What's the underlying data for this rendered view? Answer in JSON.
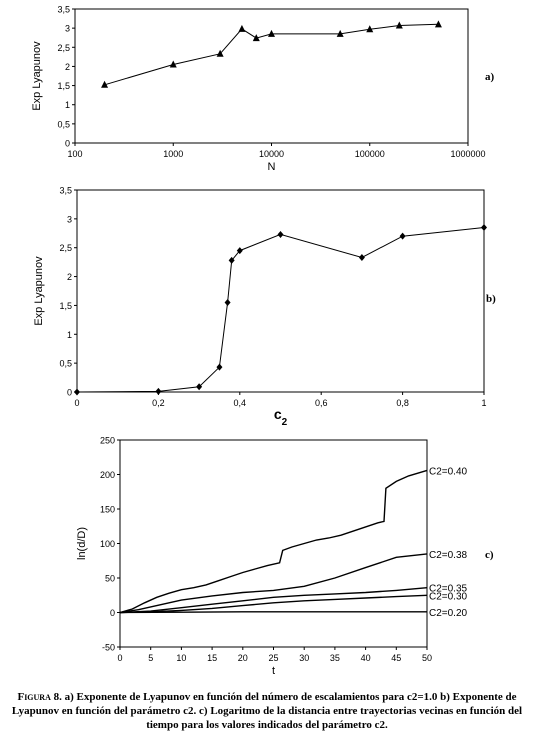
{
  "chart_data": [
    {
      "type": "line",
      "panel_label": "a)",
      "xlabel": "N",
      "ylabel": "Exp Lyapunov",
      "xscale": "log",
      "xlim": [
        100,
        1000000
      ],
      "ylim": [
        0,
        3.5
      ],
      "x_ticks": [
        "100",
        "1000",
        "10000",
        "100000",
        "1000000"
      ],
      "y_ticks": [
        "0",
        "0,5",
        "1",
        "1,5",
        "2",
        "2,5",
        "3",
        "3,5"
      ],
      "marker": "triangle",
      "grid": false,
      "x": [
        200,
        1000,
        3000,
        5000,
        7000,
        10000,
        50000,
        100000,
        200000,
        500000
      ],
      "y": [
        1.52,
        2.05,
        2.33,
        2.98,
        2.74,
        2.85,
        2.85,
        2.97,
        3.07,
        3.1
      ]
    },
    {
      "type": "line",
      "panel_label": "b)",
      "xlabel": "c",
      "xlabel_sub": "2",
      "ylabel": "Exp Lyapunov",
      "xlim": [
        0,
        1
      ],
      "ylim": [
        0,
        3.5
      ],
      "x_ticks": [
        "0",
        "0,2",
        "0,4",
        "0,6",
        "0,8",
        "1"
      ],
      "y_ticks": [
        "0",
        "0,5",
        "1",
        "1,5",
        "2",
        "2,5",
        "3",
        "3,5"
      ],
      "marker": "diamond",
      "grid": false,
      "x": [
        0,
        0.2,
        0.3,
        0.35,
        0.37,
        0.38,
        0.4,
        0.5,
        0.7,
        0.8,
        1.0
      ],
      "y": [
        0,
        0.01,
        0.09,
        0.43,
        1.55,
        2.28,
        2.45,
        2.73,
        2.33,
        2.7,
        2.85
      ]
    },
    {
      "type": "line",
      "panel_label": "c)",
      "xlabel": "t",
      "ylabel": "ln(d/D)",
      "xlim": [
        0,
        50
      ],
      "ylim": [
        -50,
        250
      ],
      "x_ticks": [
        "0",
        "5",
        "10",
        "15",
        "20",
        "25",
        "30",
        "35",
        "40",
        "45",
        "50"
      ],
      "y_ticks": [
        "-50",
        "0",
        "50",
        "100",
        "150",
        "200",
        "250"
      ],
      "grid": false,
      "series": [
        {
          "name": "C2=0.40",
          "x": [
            0,
            2,
            4,
            6,
            8,
            10,
            12,
            14,
            16,
            18,
            20,
            22,
            24,
            26,
            26.5,
            28,
            30,
            32,
            34,
            36,
            38,
            40,
            42,
            43,
            43.3,
            45,
            47,
            50
          ],
          "y": [
            0,
            5,
            14,
            22,
            28,
            33,
            36,
            40,
            46,
            52,
            58,
            63,
            68,
            72,
            90,
            95,
            100,
            105,
            108,
            112,
            118,
            124,
            130,
            132,
            180,
            190,
            198,
            206
          ]
        },
        {
          "name": "C2=0.38",
          "x": [
            0,
            3,
            6,
            10,
            15,
            20,
            25,
            30,
            35,
            40,
            45,
            50
          ],
          "y": [
            0,
            4,
            10,
            18,
            24,
            29,
            32,
            38,
            50,
            65,
            80,
            85
          ]
        },
        {
          "name": "C2=0.35",
          "x": [
            0,
            5,
            10,
            15,
            20,
            25,
            30,
            35,
            40,
            45,
            50
          ],
          "y": [
            0,
            2,
            7,
            12,
            17,
            22,
            25,
            27,
            29,
            32,
            36
          ]
        },
        {
          "name": "C2=0.30",
          "x": [
            0,
            5,
            10,
            15,
            20,
            25,
            30,
            35,
            40,
            45,
            50
          ],
          "y": [
            0,
            1,
            3,
            6,
            10,
            14,
            17,
            19,
            21,
            23,
            25
          ]
        },
        {
          "name": "C2=0.20",
          "x": [
            0,
            10,
            20,
            30,
            40,
            50
          ],
          "y": [
            0,
            0.5,
            1,
            1,
            1,
            1
          ]
        }
      ]
    }
  ],
  "caption": {
    "figure_label": "Figura 8.",
    "text": "a) Exponente de Lyapunov en función del número de escalamientos para c2=1.0 b) Exponente de Lyapunov en función del parámetro c2. c) Logaritmo de la distancia entre trayectorias vecinas en función del tiempo para los valores indicados del parámetro c2."
  }
}
